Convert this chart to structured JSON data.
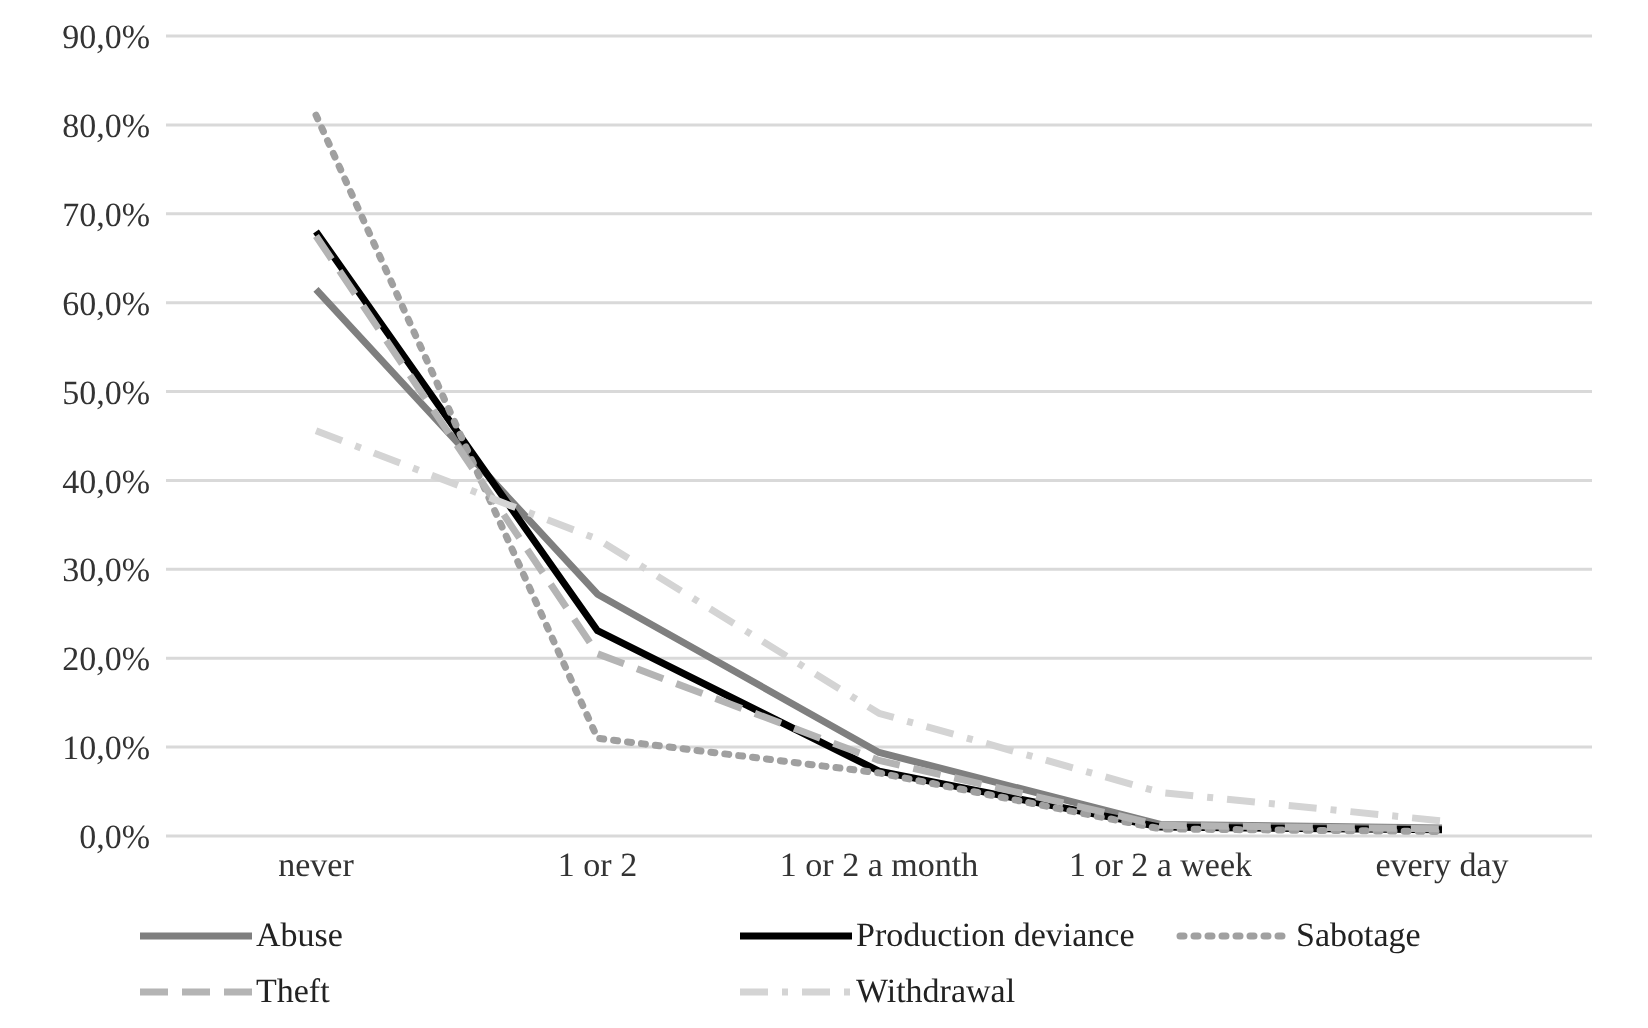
{
  "chart_data": {
    "type": "line",
    "categories": [
      "never",
      "1 or 2",
      "1 or 2 a month",
      "1 or 2 a week",
      "every day"
    ],
    "series": [
      {
        "name": "Abuse",
        "color": "#7f7f7f",
        "line_style": "solid",
        "values": [
          61.5,
          27.2,
          9.4,
          1.3,
          0.9
        ]
      },
      {
        "name": "Production deviance",
        "color": "#000000",
        "line_style": "solid",
        "values": [
          68.0,
          23.1,
          7.3,
          1.0,
          0.7
        ]
      },
      {
        "name": "Sabotage",
        "color": "#a0a0a0",
        "line_style": "dotted",
        "values": [
          81.1,
          11.0,
          7.1,
          0.8,
          0.5
        ]
      },
      {
        "name": "Theft",
        "color": "#b4b4b4",
        "line_style": "dashed",
        "values": [
          67.5,
          20.5,
          8.5,
          1.2,
          0.8
        ]
      },
      {
        "name": "Withdrawal",
        "color": "#d4d4d4",
        "line_style": "dashdot",
        "values": [
          45.6,
          33.4,
          13.8,
          4.9,
          1.7
        ]
      }
    ],
    "ylim": [
      0,
      90
    ],
    "yticks": [
      {
        "value": 0,
        "label": "0,0%"
      },
      {
        "value": 10,
        "label": "10,0%"
      },
      {
        "value": 20,
        "label": "20,0%"
      },
      {
        "value": 30,
        "label": "30,0%"
      },
      {
        "value": 40,
        "label": "40,0%"
      },
      {
        "value": 50,
        "label": "50,0%"
      },
      {
        "value": 60,
        "label": "60,0%"
      },
      {
        "value": 70,
        "label": "70,0%"
      },
      {
        "value": 80,
        "label": "80,0%"
      },
      {
        "value": 90,
        "label": "90,0%"
      }
    ],
    "grid": "y",
    "legend": "bottom",
    "marker": "none"
  }
}
